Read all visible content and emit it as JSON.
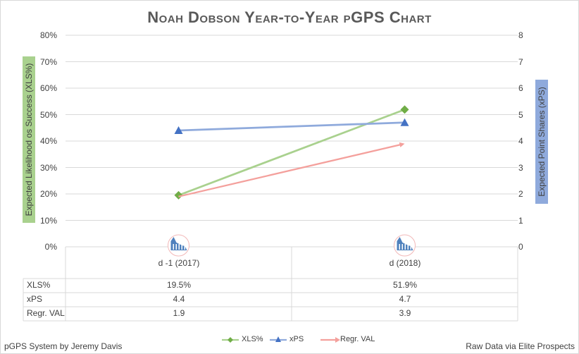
{
  "chart_data": {
    "type": "line",
    "title": "Noah Dobson Year-to-Year pGPS Chart",
    "categories": [
      "d -1 (2017)",
      "d (2018)"
    ],
    "y_left": {
      "label": "Expected Likelihood os Success (XLS%)",
      "ticks": [
        "0%",
        "10%",
        "20%",
        "30%",
        "40%",
        "50%",
        "60%",
        "70%",
        "80%"
      ],
      "range": [
        0,
        80
      ]
    },
    "y_right": {
      "label": "Expected Point Shares (xPS)",
      "ticks": [
        "0",
        "1",
        "2",
        "3",
        "4",
        "5",
        "6",
        "7",
        "8"
      ],
      "range": [
        0,
        8
      ]
    },
    "series": [
      {
        "name": "XLS%",
        "axis": "left",
        "values": [
          19.5,
          51.9
        ],
        "display": [
          "19.5%",
          "51.9%"
        ],
        "color": "#a9d18e",
        "marker": "diamond",
        "marker_color": "#70ad47"
      },
      {
        "name": "xPS",
        "axis": "right",
        "values": [
          4.4,
          4.7
        ],
        "display": [
          "4.4",
          "4.7"
        ],
        "color": "#8faadc",
        "marker": "triangle",
        "marker_color": "#4472c4"
      },
      {
        "name": "Regr. VAL",
        "axis": "right",
        "values": [
          1.9,
          3.9
        ],
        "display": [
          "1.9",
          "3.9"
        ],
        "color": "#f4a09c",
        "marker": "arrow",
        "marker_color": "#f4a09c"
      }
    ],
    "grid": true,
    "legend": "bottom",
    "icons": [
      "team-logo-icon",
      "team-logo-icon"
    ]
  },
  "footer": {
    "left": "pGPS System by Jeremy Davis",
    "right": "Raw Data via Elite Prospects"
  }
}
